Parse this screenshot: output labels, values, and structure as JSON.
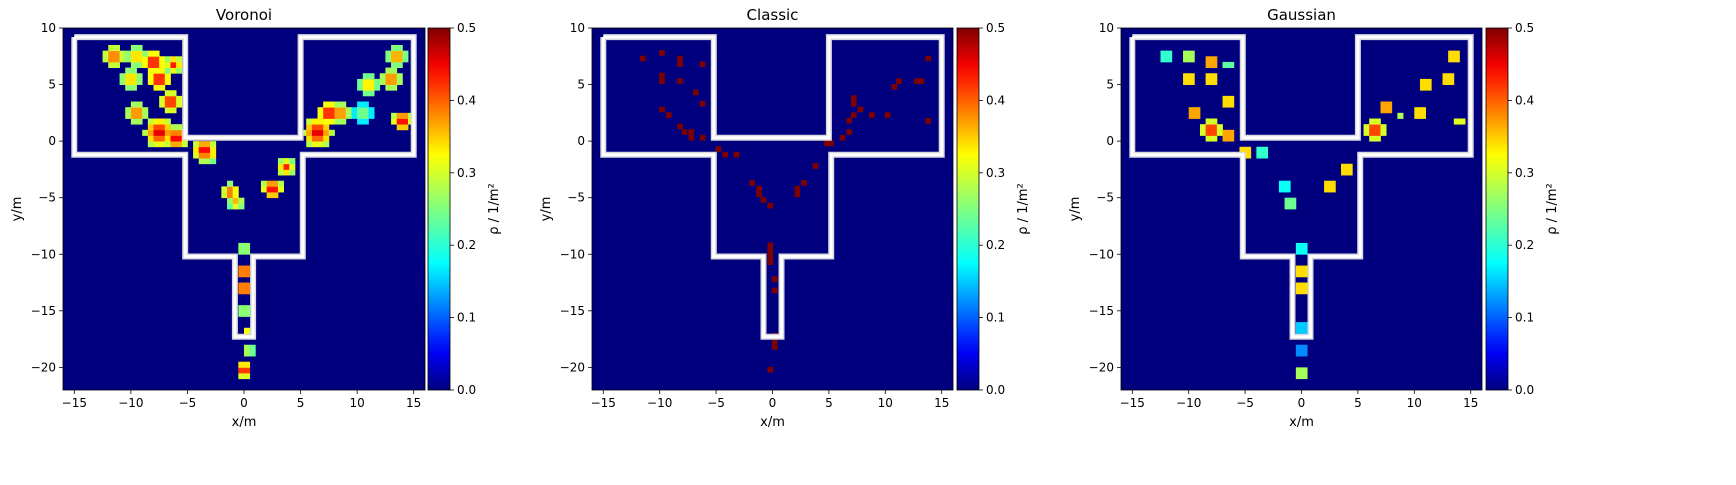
{
  "colormap": [
    "#00007f",
    "#0000ff",
    "#00ffff",
    "#7fff7f",
    "#ffff00",
    "#ff0000",
    "#7f0000"
  ],
  "chart_data": [
    {
      "type": "heatmap",
      "title": "Voronoi",
      "xlabel": "x/m",
      "ylabel": "y/m",
      "xlim": [
        -16,
        16
      ],
      "ylim": [
        -22,
        10
      ],
      "xticks": [
        "−15",
        "−10",
        "−5",
        "0",
        "5",
        "10",
        "15"
      ],
      "yticks": [
        "10",
        "5",
        "0",
        "−5",
        "−10",
        "−15",
        "−20"
      ],
      "colorbar": {
        "label": "ρ / 1/m²",
        "ticks": [
          "0.5",
          "0.4",
          "0.3",
          "0.2",
          "0.1",
          "0.0"
        ],
        "range": [
          0,
          0.5
        ]
      },
      "blobs": [
        [
          -11.5,
          7.5,
          1.0,
          0.45
        ],
        [
          -9.5,
          7.5,
          1.0,
          0.4
        ],
        [
          -8.0,
          7.0,
          1.0,
          0.5
        ],
        [
          -6.2,
          6.8,
          0.8,
          0.45
        ],
        [
          -10.0,
          5.5,
          1.0,
          0.4
        ],
        [
          -7.5,
          5.5,
          1.0,
          0.5
        ],
        [
          -6.5,
          3.5,
          0.9,
          0.5
        ],
        [
          -9.5,
          2.5,
          0.9,
          0.45
        ],
        [
          -7.5,
          0.8,
          1.3,
          0.5
        ],
        [
          -6.0,
          0.3,
          1.0,
          0.5
        ],
        [
          -3.5,
          -0.8,
          1.0,
          0.5
        ],
        [
          -3.0,
          -1.2,
          0.7,
          0.4
        ],
        [
          -1.2,
          -4.5,
          0.8,
          0.45
        ],
        [
          -0.7,
          -5.4,
          0.7,
          0.4
        ],
        [
          2.5,
          -4.2,
          0.9,
          0.5
        ],
        [
          3.7,
          -2.3,
          0.8,
          0.45
        ],
        [
          6.5,
          0.8,
          1.3,
          0.5
        ],
        [
          7.5,
          2.5,
          1.0,
          0.5
        ],
        [
          8.5,
          2.5,
          0.9,
          0.45
        ],
        [
          10.5,
          2.5,
          0.8,
          0.3
        ],
        [
          11.0,
          5.0,
          0.9,
          0.4
        ],
        [
          13.0,
          5.5,
          0.9,
          0.45
        ],
        [
          13.5,
          7.5,
          0.8,
          0.45
        ],
        [
          14.0,
          1.8,
          0.9,
          0.5
        ],
        [
          0.0,
          -9.5,
          0.6,
          0.35
        ],
        [
          0.0,
          -11.5,
          0.7,
          0.5
        ],
        [
          0.0,
          -13.0,
          0.7,
          0.5
        ],
        [
          0.0,
          -15.0,
          0.6,
          0.35
        ],
        [
          0.3,
          -17.0,
          0.6,
          0.4
        ],
        [
          0.4,
          -18.5,
          0.6,
          0.35
        ],
        [
          0.0,
          -20.2,
          0.7,
          0.5
        ]
      ],
      "cells": []
    },
    {
      "type": "heatmap",
      "title": "Classic",
      "xlabel": "x/m",
      "ylabel": "y/m",
      "xlim": [
        -16,
        16
      ],
      "ylim": [
        -22,
        10
      ],
      "xticks": [
        "−15",
        "−10",
        "−5",
        "0",
        "5",
        "10",
        "15"
      ],
      "yticks": [
        "10",
        "5",
        "0",
        "−5",
        "−10",
        "−15",
        "−20"
      ],
      "colorbar": {
        "label": "ρ / 1/m²",
        "ticks": [
          "0.5",
          "0.4",
          "0.3",
          "0.2",
          "0.1",
          "0.0"
        ],
        "range": [
          0,
          0.5
        ]
      },
      "blobs": [],
      "cells": [
        [
          -11.5,
          7.3
        ],
        [
          -9.8,
          7.8
        ],
        [
          -8.2,
          7.3
        ],
        [
          -8.2,
          6.8
        ],
        [
          -6.2,
          6.8
        ],
        [
          -9.8,
          5.8
        ],
        [
          -9.8,
          5.3
        ],
        [
          -8.2,
          5.3
        ],
        [
          -6.8,
          4.3
        ],
        [
          -6.2,
          3.3
        ],
        [
          -9.8,
          2.8
        ],
        [
          -9.2,
          2.3
        ],
        [
          -8.2,
          1.3
        ],
        [
          -7.8,
          0.8
        ],
        [
          -7.2,
          0.8
        ],
        [
          -7.2,
          0.3
        ],
        [
          -6.2,
          0.3
        ],
        [
          -4.8,
          -0.7
        ],
        [
          -4.2,
          -1.2
        ],
        [
          -3.2,
          -1.2
        ],
        [
          -1.8,
          -3.7
        ],
        [
          -1.2,
          -4.2
        ],
        [
          -1.2,
          -4.7
        ],
        [
          -0.8,
          -5.2
        ],
        [
          -0.2,
          -5.7
        ],
        [
          2.2,
          -4.2
        ],
        [
          2.2,
          -4.7
        ],
        [
          2.8,
          -3.7
        ],
        [
          3.8,
          -2.2
        ],
        [
          4.8,
          -0.2
        ],
        [
          5.2,
          -0.2
        ],
        [
          6.2,
          0.3
        ],
        [
          6.8,
          0.8
        ],
        [
          6.8,
          1.8
        ],
        [
          7.2,
          2.3
        ],
        [
          7.2,
          3.3
        ],
        [
          7.2,
          3.8
        ],
        [
          7.8,
          2.8
        ],
        [
          8.8,
          2.3
        ],
        [
          10.2,
          2.3
        ],
        [
          10.8,
          4.8
        ],
        [
          11.2,
          5.3
        ],
        [
          12.8,
          5.3
        ],
        [
          13.2,
          5.3
        ],
        [
          13.8,
          7.3
        ],
        [
          13.8,
          1.8
        ],
        [
          -0.2,
          -9.2
        ],
        [
          -0.2,
          -9.7
        ],
        [
          -0.2,
          -10.2
        ],
        [
          -0.2,
          -10.7
        ],
        [
          0.2,
          -12.2
        ],
        [
          0.2,
          -13.2
        ],
        [
          0.2,
          -17.2
        ],
        [
          0.2,
          -17.7
        ],
        [
          0.2,
          -18.2
        ],
        [
          -0.2,
          -20.2
        ]
      ]
    },
    {
      "type": "heatmap",
      "title": "Gaussian",
      "xlabel": "x/m",
      "ylabel": "y/m",
      "xlim": [
        -16,
        16
      ],
      "ylim": [
        -22,
        10
      ],
      "xticks": [
        "−15",
        "−10",
        "−5",
        "0",
        "5",
        "10",
        "15"
      ],
      "yticks": [
        "10",
        "5",
        "0",
        "−5",
        "−10",
        "−15",
        "−20"
      ],
      "colorbar": {
        "label": "ρ / 1/m²",
        "ticks": [
          "0.5",
          "0.4",
          "0.3",
          "0.2",
          "0.1",
          "0.0"
        ],
        "range": [
          0,
          0.5
        ]
      },
      "blobs": [
        [
          -12.0,
          7.5,
          0.5,
          0.3
        ],
        [
          -10.0,
          7.5,
          0.5,
          0.4
        ],
        [
          -8.0,
          7.0,
          0.6,
          0.5
        ],
        [
          -6.5,
          6.8,
          0.5,
          0.3
        ],
        [
          -10.0,
          5.5,
          0.5,
          0.5
        ],
        [
          -8.0,
          5.5,
          0.5,
          0.5
        ],
        [
          -6.5,
          3.5,
          0.5,
          0.5
        ],
        [
          -9.5,
          2.5,
          0.6,
          0.5
        ],
        [
          -8.0,
          1.0,
          0.9,
          0.5
        ],
        [
          -6.5,
          0.5,
          0.6,
          0.5
        ],
        [
          -5.0,
          -1.0,
          0.5,
          0.5
        ],
        [
          -3.5,
          -1.0,
          0.5,
          0.3
        ],
        [
          -1.5,
          -4.0,
          0.4,
          0.3
        ],
        [
          -1.0,
          -5.5,
          0.5,
          0.35
        ],
        [
          2.5,
          -4.0,
          0.5,
          0.5
        ],
        [
          4.0,
          -2.5,
          0.5,
          0.5
        ],
        [
          6.5,
          1.0,
          0.9,
          0.5
        ],
        [
          7.5,
          3.0,
          0.6,
          0.5
        ],
        [
          8.8,
          2.3,
          0.4,
          0.3
        ],
        [
          10.5,
          2.5,
          0.5,
          0.5
        ],
        [
          11.0,
          5.0,
          0.5,
          0.5
        ],
        [
          13.0,
          5.5,
          0.5,
          0.5
        ],
        [
          13.5,
          7.5,
          0.5,
          0.5
        ],
        [
          14.0,
          1.8,
          0.5,
          0.4
        ],
        [
          0.0,
          -9.5,
          0.4,
          0.3
        ],
        [
          0.0,
          -11.5,
          0.5,
          0.5
        ],
        [
          0.0,
          -13.0,
          0.5,
          0.5
        ],
        [
          0.0,
          -16.5,
          0.4,
          0.25
        ],
        [
          0.0,
          -18.5,
          0.4,
          0.2
        ],
        [
          0.0,
          -20.5,
          0.5,
          0.4
        ]
      ],
      "cells": []
    }
  ]
}
